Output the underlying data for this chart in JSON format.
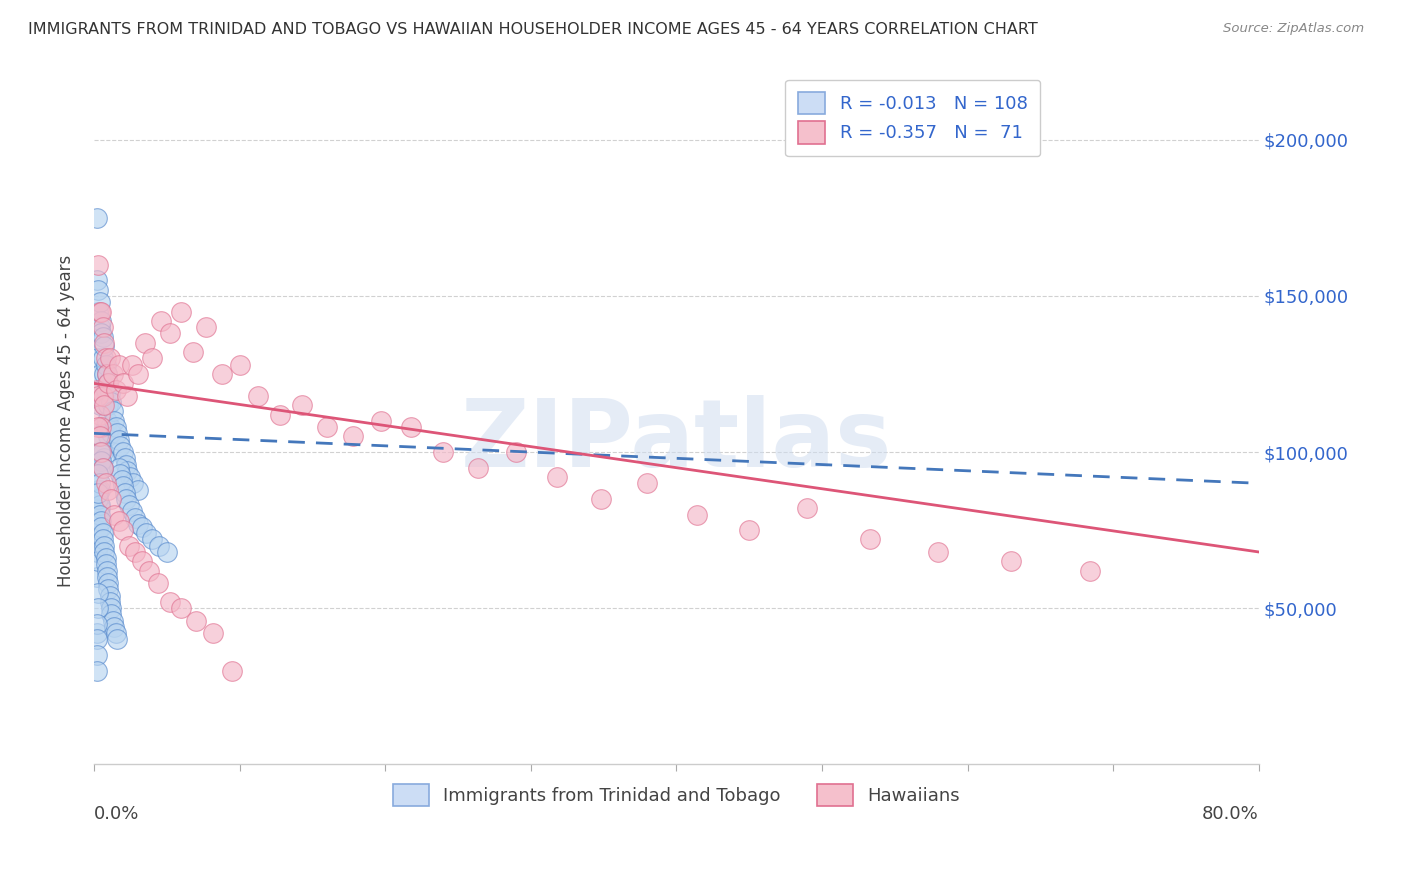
{
  "title": "IMMIGRANTS FROM TRINIDAD AND TOBAGO VS HAWAIIAN HOUSEHOLDER INCOME AGES 45 - 64 YEARS CORRELATION CHART",
  "source": "Source: ZipAtlas.com",
  "ylabel": "Householder Income Ages 45 - 64 years",
  "xmin": 0.0,
  "xmax": 0.8,
  "ymin": 0,
  "ymax": 220000,
  "yticks": [
    50000,
    100000,
    150000,
    200000
  ],
  "ytick_labels": [
    "$50,000",
    "$100,000",
    "$150,000",
    "$200,000"
  ],
  "color_blue_scatter_face": "#b8d4f0",
  "color_blue_scatter_edge": "#5588cc",
  "color_pink_scatter_face": "#f4b8c8",
  "color_pink_scatter_edge": "#e07090",
  "color_blue_line": "#4477bb",
  "color_pink_line": "#dd5577",
  "color_text_blue": "#3366cc",
  "color_text_dark": "#444444",
  "background": "#ffffff",
  "grid_color": "#cccccc",
  "legend_R1": "-0.013",
  "legend_N1": "108",
  "legend_R2": "-0.357",
  "legend_N2": " 71",
  "blue_x": [
    0.002,
    0.002,
    0.002,
    0.002,
    0.002,
    0.003,
    0.003,
    0.003,
    0.003,
    0.003,
    0.003,
    0.003,
    0.004,
    0.004,
    0.004,
    0.004,
    0.004,
    0.004,
    0.005,
    0.005,
    0.005,
    0.005,
    0.005,
    0.006,
    0.006,
    0.006,
    0.006,
    0.007,
    0.007,
    0.007,
    0.007,
    0.008,
    0.008,
    0.008,
    0.009,
    0.009,
    0.01,
    0.01,
    0.01,
    0.011,
    0.011,
    0.012,
    0.012,
    0.013,
    0.014,
    0.015,
    0.016,
    0.017,
    0.018,
    0.02,
    0.021,
    0.022,
    0.023,
    0.025,
    0.027,
    0.03,
    0.003,
    0.003,
    0.004,
    0.004,
    0.005,
    0.005,
    0.006,
    0.006,
    0.007,
    0.007,
    0.008,
    0.008,
    0.009,
    0.009,
    0.01,
    0.01,
    0.011,
    0.011,
    0.012,
    0.012,
    0.013,
    0.014,
    0.015,
    0.016,
    0.017,
    0.018,
    0.019,
    0.02,
    0.021,
    0.022,
    0.024,
    0.026,
    0.028,
    0.03,
    0.033,
    0.036,
    0.04,
    0.045,
    0.05,
    0.003,
    0.003,
    0.002,
    0.002,
    0.002,
    0.002,
    0.003,
    0.004,
    0.005,
    0.006,
    0.003,
    0.004,
    0.003
  ],
  "blue_y": [
    175000,
    155000,
    68000,
    60000,
    42000,
    152000,
    145000,
    130000,
    80000,
    75000,
    70000,
    65000,
    148000,
    140000,
    125000,
    115000,
    88000,
    82000,
    142000,
    138000,
    120000,
    108000,
    95000,
    137000,
    130000,
    118000,
    100000,
    134000,
    125000,
    115000,
    98000,
    128000,
    120000,
    108000,
    125000,
    110000,
    122000,
    115000,
    105000,
    119000,
    108000,
    116000,
    106000,
    113000,
    110000,
    108000,
    106000,
    104000,
    102000,
    100000,
    98000,
    96000,
    94000,
    92000,
    90000,
    88000,
    88000,
    85000,
    83000,
    80000,
    78000,
    76000,
    74000,
    72000,
    70000,
    68000,
    66000,
    64000,
    62000,
    60000,
    58000,
    56000,
    54000,
    52000,
    50000,
    48000,
    46000,
    44000,
    42000,
    40000,
    95000,
    93000,
    91000,
    89000,
    87000,
    85000,
    83000,
    81000,
    79000,
    77000,
    76000,
    74000,
    72000,
    70000,
    68000,
    55000,
    50000,
    45000,
    40000,
    35000,
    30000,
    105000,
    100000,
    97000,
    95000,
    93000,
    90000,
    87000
  ],
  "pink_x": [
    0.002,
    0.003,
    0.003,
    0.004,
    0.004,
    0.005,
    0.005,
    0.006,
    0.006,
    0.007,
    0.007,
    0.008,
    0.009,
    0.01,
    0.011,
    0.013,
    0.015,
    0.017,
    0.02,
    0.023,
    0.026,
    0.03,
    0.035,
    0.04,
    0.046,
    0.052,
    0.06,
    0.068,
    0.077,
    0.088,
    0.1,
    0.113,
    0.128,
    0.143,
    0.16,
    0.178,
    0.197,
    0.218,
    0.24,
    0.264,
    0.29,
    0.318,
    0.348,
    0.38,
    0.414,
    0.45,
    0.49,
    0.533,
    0.58,
    0.63,
    0.684,
    0.003,
    0.004,
    0.005,
    0.006,
    0.008,
    0.01,
    0.012,
    0.014,
    0.017,
    0.02,
    0.024,
    0.028,
    0.033,
    0.038,
    0.044,
    0.052,
    0.06,
    0.07,
    0.082,
    0.095
  ],
  "pink_y": [
    120000,
    160000,
    118000,
    145000,
    112000,
    145000,
    108000,
    140000,
    118000,
    135000,
    115000,
    130000,
    125000,
    122000,
    130000,
    125000,
    120000,
    128000,
    122000,
    118000,
    128000,
    125000,
    135000,
    130000,
    142000,
    138000,
    145000,
    132000,
    140000,
    125000,
    128000,
    118000,
    112000,
    115000,
    108000,
    105000,
    110000,
    108000,
    100000,
    95000,
    100000,
    92000,
    85000,
    90000,
    80000,
    75000,
    82000,
    72000,
    68000,
    65000,
    62000,
    108000,
    105000,
    100000,
    95000,
    90000,
    88000,
    85000,
    80000,
    78000,
    75000,
    70000,
    68000,
    65000,
    62000,
    58000,
    52000,
    50000,
    46000,
    42000,
    30000
  ]
}
